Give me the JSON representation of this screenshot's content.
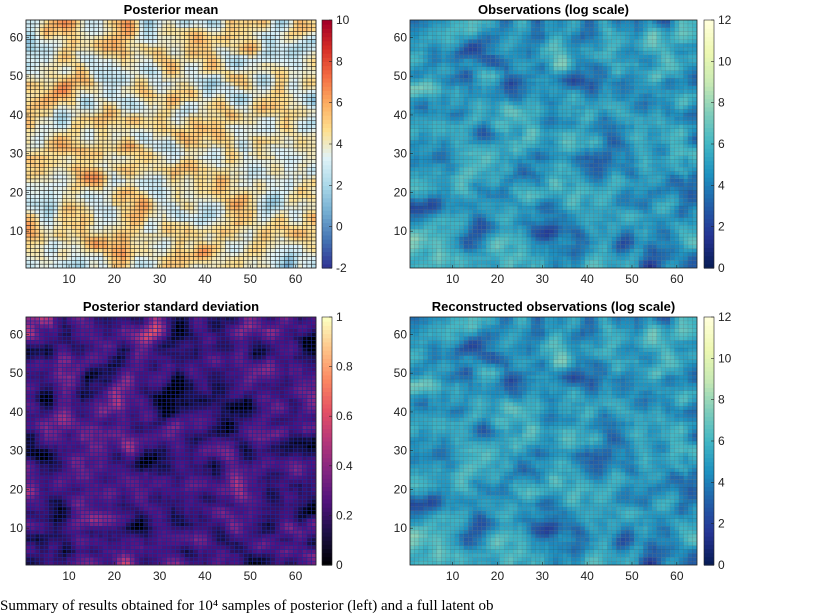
{
  "caption": "Summary of results obtained for 10⁴ samples of posterior (left) and a full latent ob",
  "chart_data": [
    {
      "type": "heatmap",
      "title": "Posterior mean",
      "grid_size": 64,
      "xlim": [
        0.5,
        64.5
      ],
      "ylim": [
        0.5,
        64.5
      ],
      "xticks": [
        10,
        20,
        30,
        40,
        50,
        60
      ],
      "yticks": [
        10,
        20,
        30,
        40,
        50,
        60
      ],
      "colorbar": {
        "min": -2,
        "max": 10,
        "ticks": [
          -2,
          0,
          2,
          4,
          6,
          8,
          10
        ],
        "colormap": "RdYlBu_r"
      },
      "cell_edges": "black",
      "field": {
        "seed": 11,
        "mean": 4.0,
        "amplitude": 4.2,
        "variant": "mean"
      }
    },
    {
      "type": "heatmap",
      "title": "Observations (log scale)",
      "grid_size": 64,
      "xlim": [
        0.5,
        64.5
      ],
      "ylim": [
        0.5,
        64.5
      ],
      "xticks": [
        10,
        20,
        30,
        40,
        50,
        60
      ],
      "yticks": [
        10,
        20,
        30,
        40,
        50,
        60
      ],
      "colorbar": {
        "min": 0,
        "max": 12,
        "ticks": [
          0,
          2,
          4,
          6,
          8,
          10,
          12
        ],
        "colormap": "YlGnBu_r"
      },
      "cell_edges": "thin-gray",
      "field": {
        "seed": 29,
        "mean": 4.6,
        "amplitude": 4.0,
        "variant": "obs"
      }
    },
    {
      "type": "heatmap",
      "title": "Posterior standard deviation",
      "grid_size": 64,
      "xlim": [
        0.5,
        64.5
      ],
      "ylim": [
        0.5,
        64.5
      ],
      "xticks": [
        10,
        20,
        30,
        40,
        50,
        60
      ],
      "yticks": [
        10,
        20,
        30,
        40,
        50,
        60
      ],
      "colorbar": {
        "min": 0,
        "max": 1,
        "ticks": [
          0,
          0.2,
          0.4,
          0.6,
          0.8,
          1
        ],
        "tick_labels": [
          "0",
          "0.2",
          "0.4",
          "0.6",
          "0.8",
          "1"
        ],
        "colormap": "magma"
      },
      "cell_edges": "blue",
      "field": {
        "seed": 47,
        "mean": 0.25,
        "amplitude": 0.35,
        "variant": "sd"
      }
    },
    {
      "type": "heatmap",
      "title": "Reconstructed observations (log scale)",
      "grid_size": 64,
      "xlim": [
        0.5,
        64.5
      ],
      "ylim": [
        0.5,
        64.5
      ],
      "xticks": [
        10,
        20,
        30,
        40,
        50,
        60
      ],
      "yticks": [
        10,
        20,
        30,
        40,
        50,
        60
      ],
      "colorbar": {
        "min": 0,
        "max": 12,
        "ticks": [
          0,
          2,
          4,
          6,
          8,
          10,
          12
        ],
        "colormap": "YlGnBu_r"
      },
      "cell_edges": "thin-gray",
      "field": {
        "seed": 29,
        "mean": 4.6,
        "amplitude": 3.9,
        "variant": "recon"
      }
    }
  ]
}
